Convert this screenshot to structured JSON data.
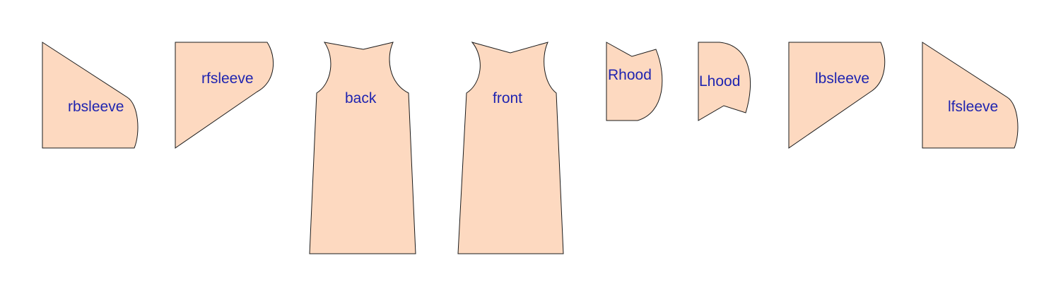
{
  "diagram": {
    "piece_fill": "#fdd9c0",
    "outline_color": "#1a1a1a",
    "label_color": "#1f24b0",
    "pieces": [
      {
        "id": "rbsleeve",
        "label": "rbsleeve"
      },
      {
        "id": "rfsleeve",
        "label": "rfsleeve"
      },
      {
        "id": "back",
        "label": "back"
      },
      {
        "id": "front",
        "label": "front"
      },
      {
        "id": "rhood",
        "label": "Rhood"
      },
      {
        "id": "lhood",
        "label": "Lhood"
      },
      {
        "id": "lbsleeve",
        "label": "lbsleeve"
      },
      {
        "id": "lfsleeve",
        "label": "lfsleeve"
      }
    ]
  }
}
